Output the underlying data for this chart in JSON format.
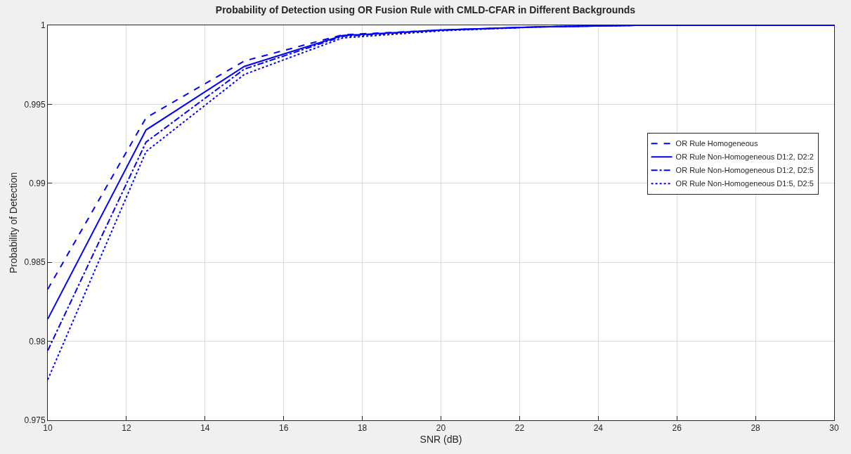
{
  "chart_data": {
    "type": "line",
    "title": "Probability of Detection using OR Fusion Rule with CMLD-CFAR in Different Backgrounds",
    "xlabel": "SNR (dB)",
    "ylabel": "Probability of Detection",
    "x": [
      10,
      12.5,
      15,
      17.5,
      20,
      22.5,
      25,
      27.5,
      30
    ],
    "series": [
      {
        "name": "OR Rule Homogeneous",
        "color": "#0000ff",
        "line_style": "dashed",
        "values": [
          0.9833,
          0.99415,
          0.99774,
          0.9994,
          0.9997,
          0.9999,
          1,
          1,
          1
        ]
      },
      {
        "name": "OR Rule Non-Homogeneous D1:2, D2:2",
        "color": "#0000ff",
        "line_style": "solid",
        "values": [
          0.98141,
          0.99338,
          0.9974,
          0.99935,
          0.9997,
          0.9999,
          1,
          1,
          1
        ]
      },
      {
        "name": "OR Rule Non-Homogeneous D1:2, D2:5",
        "color": "#0000ff",
        "line_style": "dashdot",
        "values": [
          0.97941,
          0.99261,
          0.99723,
          0.9993,
          0.9997,
          0.9999,
          1,
          1,
          1
        ]
      },
      {
        "name": "OR Rule Non-Homogeneous D1:5, D2:5",
        "color": "#0000ff",
        "line_style": "dotted",
        "values": [
          0.97757,
          0.99201,
          0.99689,
          0.9992,
          0.99965,
          0.9999,
          1,
          1,
          1
        ]
      }
    ],
    "xlim": [
      10,
      30
    ],
    "xticks": [
      10,
      12,
      14,
      16,
      18,
      20,
      22,
      24,
      26,
      28,
      30
    ],
    "ylim": [
      0.975,
      1
    ],
    "yticks": [
      0.975,
      0.98,
      0.985,
      0.99,
      0.995,
      1
    ],
    "grid": true,
    "legend": "right",
    "marker": "none"
  }
}
